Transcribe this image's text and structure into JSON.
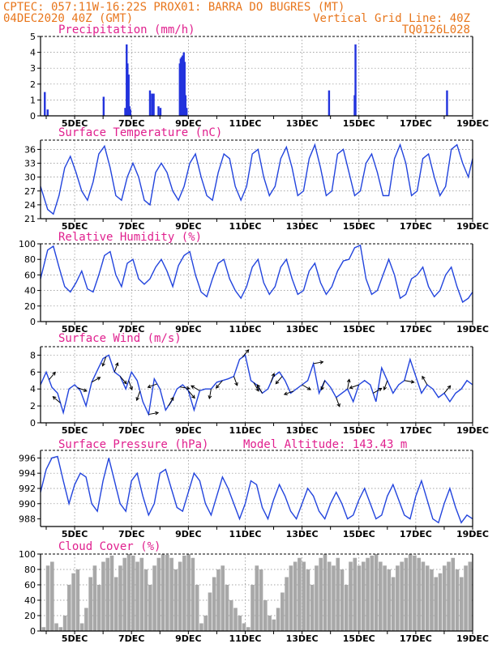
{
  "header": {
    "line1": "CPTEC:  057:11W-16:22S  PROX01: BARRA DO BUGRES (MT)",
    "line2_left": "04DEC2020 40Z (GMT)",
    "line2_right": "Vertical Grid Line: 40Z",
    "line3_right": "TQ0126L028"
  },
  "colors": {
    "series": "#2244dd",
    "bars": "#2233dd",
    "cloud": "#a8a8a8",
    "arrow": "#000000",
    "header": "#e8761c",
    "title": "#e0208e"
  },
  "chart_data": [
    {
      "type": "bar",
      "title": "Precipitation (mm/h)",
      "xticks": [
        "5DEC",
        "7DEC",
        "9DEC",
        "11DEC",
        "13DEC",
        "15DEC",
        "17DEC",
        "19DEC"
      ],
      "xrange_days": [
        3.8,
        19.0
      ],
      "ylim": [
        0,
        5
      ],
      "yticks": [
        0,
        1,
        2,
        3,
        4,
        5
      ],
      "x": [
        3.95,
        4.05,
        6.02,
        6.78,
        6.83,
        6.86,
        6.9,
        6.93,
        6.96,
        7.65,
        7.72,
        7.78,
        7.95,
        8.02,
        8.7,
        8.73,
        8.76,
        8.8,
        8.84,
        8.87,
        8.9,
        8.94,
        13.95,
        14.85,
        14.88,
        18.1
      ],
      "values": [
        1.5,
        0.4,
        1.2,
        0.5,
        4.5,
        3.3,
        2.6,
        0.6,
        0.4,
        1.6,
        1.4,
        1.4,
        0.6,
        0.5,
        3.3,
        3.6,
        3.7,
        3.8,
        4.0,
        3.4,
        1.3,
        0.5,
        1.6,
        1.3,
        4.5,
        1.6
      ]
    },
    {
      "type": "line",
      "title": "Surface Temperature (nC)",
      "xticks": [
        "5DEC",
        "7DEC",
        "9DEC",
        "11DEC",
        "13DEC",
        "15DEC",
        "17DEC",
        "19DEC"
      ],
      "xrange_days": [
        3.8,
        19.0
      ],
      "ylim": [
        21,
        38
      ],
      "yticks": [
        21,
        24,
        27,
        30,
        33,
        36
      ],
      "x": [
        3.8,
        4.05,
        4.25,
        4.45,
        4.65,
        4.85,
        5.05,
        5.25,
        5.45,
        5.65,
        5.85,
        6.05,
        6.25,
        6.45,
        6.65,
        6.85,
        7.05,
        7.25,
        7.45,
        7.65,
        7.85,
        8.05,
        8.25,
        8.45,
        8.65,
        8.85,
        9.05,
        9.25,
        9.45,
        9.65,
        9.85,
        10.05,
        10.25,
        10.45,
        10.65,
        10.85,
        11.05,
        11.25,
        11.45,
        11.65,
        11.85,
        12.05,
        12.25,
        12.45,
        12.65,
        12.85,
        13.05,
        13.25,
        13.45,
        13.65,
        13.85,
        14.05,
        14.25,
        14.45,
        14.65,
        14.85,
        15.05,
        15.25,
        15.45,
        15.65,
        15.85,
        16.05,
        16.25,
        16.45,
        16.65,
        16.85,
        17.05,
        17.25,
        17.45,
        17.65,
        17.85,
        18.05,
        18.25,
        18.45,
        18.65,
        18.85,
        19.0
      ],
      "y": [
        28,
        23,
        22,
        26,
        32,
        34.5,
        31,
        27,
        25,
        29,
        35,
        36.7,
        32,
        26,
        25,
        30,
        33,
        30,
        25,
        24,
        31,
        33,
        31,
        27,
        25,
        28,
        33,
        35,
        30,
        26,
        25,
        31,
        35,
        34,
        28,
        25,
        28,
        35,
        36,
        30,
        26,
        28,
        34,
        36.5,
        32,
        26,
        27,
        34,
        37,
        32,
        26,
        27,
        35,
        36,
        31,
        26,
        27,
        33,
        35,
        31,
        26,
        26,
        34,
        37,
        33,
        26,
        27,
        34,
        35,
        30,
        26,
        28,
        36,
        37,
        33,
        30,
        34
      ],
      "note_values": [
        36,
        27
      ]
    },
    {
      "type": "line",
      "title": "Relative Humidity (%)",
      "xticks": [
        "5DEC",
        "7DEC",
        "9DEC",
        "11DEC",
        "13DEC",
        "15DEC",
        "17DEC",
        "19DEC"
      ],
      "xrange_days": [
        3.8,
        19.0
      ],
      "ylim": [
        0,
        100
      ],
      "yticks": [
        0,
        20,
        40,
        60,
        80,
        100
      ],
      "x": [
        3.8,
        4.05,
        4.25,
        4.45,
        4.65,
        4.85,
        5.05,
        5.25,
        5.45,
        5.65,
        5.85,
        6.05,
        6.25,
        6.45,
        6.65,
        6.85,
        7.05,
        7.25,
        7.45,
        7.65,
        7.85,
        8.05,
        8.25,
        8.45,
        8.65,
        8.85,
        9.05,
        9.25,
        9.45,
        9.65,
        9.85,
        10.05,
        10.25,
        10.45,
        10.65,
        10.85,
        11.05,
        11.25,
        11.45,
        11.65,
        11.85,
        12.05,
        12.25,
        12.45,
        12.65,
        12.85,
        13.05,
        13.25,
        13.45,
        13.65,
        13.85,
        14.05,
        14.25,
        14.45,
        14.65,
        14.85,
        15.05,
        15.25,
        15.45,
        15.65,
        15.85,
        16.05,
        16.25,
        16.45,
        16.65,
        16.85,
        17.05,
        17.25,
        17.45,
        17.65,
        17.85,
        18.05,
        18.25,
        18.45,
        18.65,
        18.85,
        19.0
      ],
      "y": [
        55,
        92,
        97,
        70,
        45,
        38,
        50,
        65,
        42,
        38,
        60,
        85,
        90,
        60,
        45,
        75,
        80,
        55,
        48,
        55,
        70,
        80,
        65,
        45,
        72,
        85,
        90,
        60,
        38,
        32,
        55,
        75,
        80,
        55,
        40,
        30,
        45,
        70,
        80,
        50,
        35,
        45,
        70,
        80,
        55,
        35,
        40,
        65,
        75,
        50,
        35,
        45,
        65,
        78,
        80,
        95,
        98,
        55,
        35,
        40,
        60,
        80,
        60,
        30,
        35,
        55,
        60,
        70,
        45,
        32,
        40,
        60,
        70,
        45,
        25,
        30,
        38
      ]
    },
    {
      "type": "line",
      "title": "Surface Wind (m/s)",
      "xticks": [
        "5DEC",
        "7DEC",
        "9DEC",
        "11DEC",
        "13DEC",
        "15DEC",
        "17DEC",
        "19DEC"
      ],
      "xrange_days": [
        3.8,
        19.0
      ],
      "ylim": [
        0,
        9
      ],
      "yticks": [
        0,
        2,
        4,
        6,
        8
      ],
      "x": [
        3.8,
        4.0,
        4.2,
        4.4,
        4.6,
        4.8,
        5.0,
        5.2,
        5.4,
        5.6,
        5.8,
        6.0,
        6.2,
        6.4,
        6.6,
        6.8,
        7.0,
        7.2,
        7.4,
        7.6,
        7.8,
        8.0,
        8.2,
        8.4,
        8.6,
        8.8,
        9.0,
        9.2,
        9.4,
        9.6,
        9.8,
        10.0,
        10.2,
        10.4,
        10.6,
        10.8,
        11.0,
        11.2,
        11.4,
        11.6,
        11.8,
        12.0,
        12.2,
        12.4,
        12.6,
        12.8,
        13.0,
        13.2,
        13.4,
        13.6,
        13.8,
        14.0,
        14.2,
        14.4,
        14.6,
        14.8,
        15.0,
        15.2,
        15.4,
        15.6,
        15.8,
        16.0,
        16.2,
        16.4,
        16.6,
        16.8,
        17.0,
        17.2,
        17.4,
        17.6,
        17.8,
        18.0,
        18.2,
        18.4,
        18.6,
        18.8,
        19.0
      ],
      "y": [
        4.5,
        6.0,
        4.2,
        3.5,
        1.2,
        4.0,
        4.5,
        3.8,
        2.0,
        4.8,
        6.2,
        7.6,
        8.0,
        6.0,
        5.5,
        4.0,
        6.0,
        5.0,
        2.5,
        1.0,
        5.2,
        4.0,
        1.5,
        2.5,
        4.0,
        4.5,
        3.8,
        1.5,
        3.8,
        4.0,
        4.0,
        4.8,
        5.0,
        5.2,
        5.5,
        7.5,
        8.0,
        5.0,
        4.5,
        3.5,
        4.0,
        5.5,
        6.0,
        5.0,
        3.5,
        4.0,
        4.5,
        5.0,
        7.0,
        3.5,
        5.0,
        4.2,
        3.0,
        3.5,
        4.0,
        2.5,
        4.5,
        5.0,
        4.5,
        2.5,
        6.5,
        5.0,
        3.5,
        4.5,
        5.0,
        7.5,
        5.5,
        3.5,
        4.5,
        4.0,
        3.0,
        3.5,
        2.5,
        3.5,
        4.0,
        5.0,
        4.5
      ],
      "arrows_deg": [
        40,
        310,
        110,
        60,
        200,
        20,
        140,
        160,
        200,
        80,
        250,
        30,
        100,
        140,
        300,
        190,
        220,
        160,
        40,
        150,
        330,
        20,
        220,
        250,
        120,
        80,
        200,
        160,
        10,
        250,
        60,
        200,
        100,
        330,
        40
      ],
      "arrows_x": [
        4.1,
        4.5,
        5.1,
        5.6,
        6.1,
        6.4,
        6.6,
        6.9,
        7.3,
        7.6,
        7.9,
        8.3,
        8.7,
        9.0,
        9.4,
        9.8,
        10.2,
        10.6,
        10.9,
        11.3,
        11.6,
        11.9,
        12.3,
        12.7,
        13.0,
        13.4,
        13.8,
        14.2,
        14.6,
        15.0,
        15.5,
        16.0,
        16.6,
        17.4,
        18.0
      ]
    },
    {
      "type": "line",
      "title": "Surface Pressure (hPa)",
      "annotation": "Model Altitude: 143.43 m",
      "xticks": [
        "5DEC",
        "7DEC",
        "9DEC",
        "11DEC",
        "13DEC",
        "15DEC",
        "17DEC",
        "19DEC"
      ],
      "xrange_days": [
        3.8,
        19.0
      ],
      "ylim": [
        987,
        997
      ],
      "yticks": [
        988,
        990,
        992,
        994,
        996
      ],
      "x": [
        3.8,
        4.0,
        4.2,
        4.4,
        4.6,
        4.8,
        5.0,
        5.2,
        5.4,
        5.6,
        5.8,
        6.0,
        6.2,
        6.4,
        6.6,
        6.8,
        7.0,
        7.2,
        7.4,
        7.6,
        7.8,
        8.0,
        8.2,
        8.4,
        8.6,
        8.8,
        9.0,
        9.2,
        9.4,
        9.6,
        9.8,
        10.0,
        10.2,
        10.4,
        10.6,
        10.8,
        11.0,
        11.2,
        11.4,
        11.6,
        11.8,
        12.0,
        12.2,
        12.4,
        12.6,
        12.8,
        13.0,
        13.2,
        13.4,
        13.6,
        13.8,
        14.0,
        14.2,
        14.4,
        14.6,
        14.8,
        15.0,
        15.2,
        15.4,
        15.6,
        15.8,
        16.0,
        16.2,
        16.4,
        16.6,
        16.8,
        17.0,
        17.2,
        17.4,
        17.6,
        17.8,
        18.0,
        18.2,
        18.4,
        18.6,
        18.8,
        19.0
      ],
      "y": [
        991.5,
        994.5,
        996,
        996.2,
        993,
        990,
        992.5,
        994,
        993.5,
        990,
        989,
        993,
        996,
        993,
        990,
        989,
        993,
        994,
        991,
        988.5,
        990,
        994,
        994.5,
        992,
        989.5,
        989,
        991.5,
        994,
        993,
        990,
        988.5,
        991,
        993.5,
        992,
        990,
        988,
        990,
        993,
        992.5,
        989.5,
        988,
        990.5,
        992.5,
        991,
        989,
        988,
        990,
        992,
        991,
        989,
        988,
        990,
        991.5,
        990,
        988,
        988.5,
        990.5,
        992,
        990,
        988,
        988.5,
        991,
        992.5,
        990.5,
        988.5,
        988,
        991,
        993,
        990.5,
        988,
        987.5,
        990,
        992,
        989.5,
        987.5,
        988.5,
        988
      ]
    },
    {
      "type": "bar",
      "title": "Cloud Cover (%)",
      "xticks": [
        "5DEC",
        "7DEC",
        "9DEC",
        "11DEC",
        "13DEC",
        "15DEC",
        "17DEC",
        "19DEC"
      ],
      "xrange_days": [
        3.8,
        19.0
      ],
      "ylim": [
        0,
        100
      ],
      "yticks": [
        0,
        20,
        40,
        60,
        80,
        100
      ],
      "x": [
        3.9,
        4.05,
        4.2,
        4.35,
        4.5,
        4.65,
        4.8,
        4.95,
        5.1,
        5.25,
        5.4,
        5.55,
        5.7,
        5.85,
        6.0,
        6.15,
        6.3,
        6.45,
        6.6,
        6.75,
        6.9,
        7.05,
        7.2,
        7.35,
        7.5,
        7.65,
        7.8,
        7.95,
        8.1,
        8.25,
        8.4,
        8.55,
        8.7,
        8.85,
        9.0,
        9.15,
        9.3,
        9.45,
        9.6,
        9.75,
        9.9,
        10.05,
        10.2,
        10.35,
        10.5,
        10.65,
        10.8,
        10.95,
        11.1,
        11.25,
        11.4,
        11.55,
        11.7,
        11.85,
        12.0,
        12.15,
        12.3,
        12.45,
        12.6,
        12.75,
        12.9,
        13.05,
        13.2,
        13.35,
        13.5,
        13.65,
        13.8,
        13.95,
        14.1,
        14.25,
        14.4,
        14.55,
        14.7,
        14.85,
        15.0,
        15.15,
        15.3,
        15.45,
        15.6,
        15.75,
        15.9,
        16.05,
        16.2,
        16.35,
        16.5,
        16.65,
        16.8,
        16.95,
        17.1,
        17.25,
        17.4,
        17.55,
        17.7,
        17.85,
        18.0,
        18.15,
        18.3,
        18.45,
        18.6,
        18.75,
        18.9
      ],
      "values": [
        5,
        85,
        90,
        10,
        5,
        20,
        60,
        75,
        80,
        10,
        30,
        70,
        85,
        60,
        90,
        95,
        98,
        70,
        85,
        95,
        100,
        98,
        90,
        95,
        80,
        60,
        85,
        95,
        100,
        99,
        95,
        80,
        90,
        98,
        100,
        95,
        60,
        10,
        20,
        50,
        70,
        80,
        85,
        60,
        40,
        30,
        20,
        10,
        5,
        60,
        85,
        80,
        40,
        20,
        15,
        30,
        50,
        70,
        85,
        90,
        95,
        90,
        80,
        60,
        85,
        95,
        100,
        90,
        85,
        95,
        80,
        60,
        90,
        95,
        85,
        90,
        95,
        98,
        100,
        90,
        85,
        80,
        70,
        85,
        90,
        95,
        100,
        98,
        95,
        90,
        85,
        80,
        70,
        75,
        85,
        90,
        95,
        80,
        70,
        85,
        90
      ]
    }
  ]
}
